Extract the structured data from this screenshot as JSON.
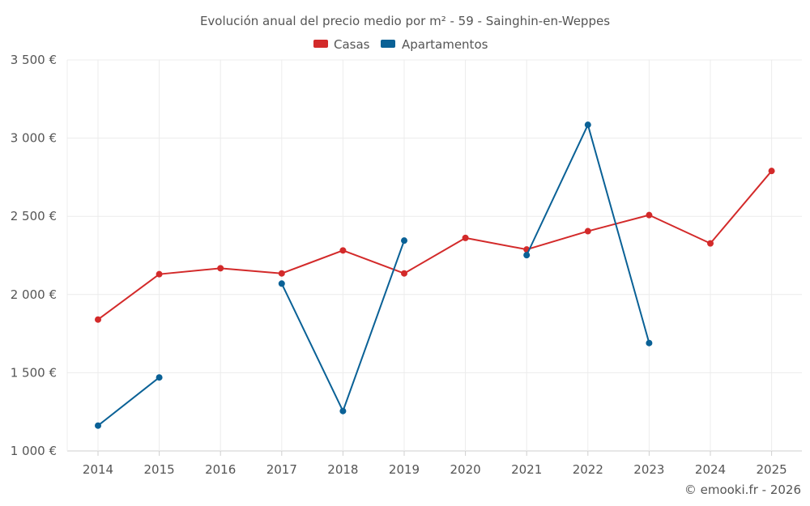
{
  "chart_data": {
    "type": "line",
    "title": "Evolución anual del precio medio por m² - 59 - Sainghin-en-Weppes",
    "x": [
      "2014",
      "2015",
      "2016",
      "2017",
      "2018",
      "2019",
      "2020",
      "2021",
      "2022",
      "2023",
      "2024",
      "2025"
    ],
    "ylim": [
      1000,
      3500
    ],
    "yticks": [
      1000,
      1500,
      2000,
      2500,
      3000,
      3500
    ],
    "ytick_labels": [
      "1 000 €",
      "1 500 €",
      "2 000 €",
      "2 500 €",
      "3 000 €",
      "3 500 €"
    ],
    "grid": true,
    "legend_position": "top-center",
    "series": [
      {
        "name": "Casas",
        "color": "#d32a2a",
        "values": [
          1840,
          2130,
          2168,
          2135,
          2282,
          2135,
          2362,
          2288,
          2405,
          2508,
          2327,
          2790
        ]
      },
      {
        "name": "Apartamentos",
        "color": "#0a6196",
        "values": [
          1162,
          1470,
          null,
          2070,
          1255,
          2345,
          null,
          2252,
          3085,
          1690,
          null,
          null
        ]
      }
    ],
    "copyright": "© emooki.fr - 2026"
  }
}
